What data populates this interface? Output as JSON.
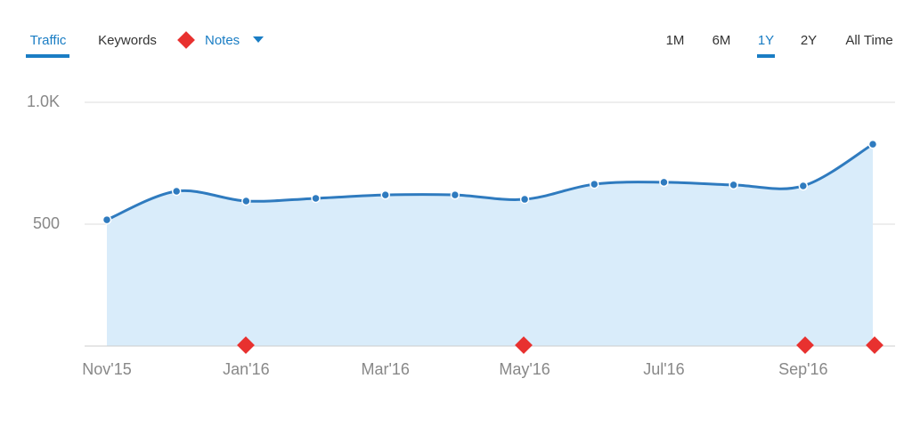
{
  "tabs": {
    "left": [
      "Traffic",
      "Keywords",
      "Notes"
    ],
    "right": [
      "1M",
      "6M",
      "1Y",
      "2Y",
      "All Time"
    ]
  },
  "chart_data": {
    "type": "area",
    "categories": [
      "Nov'15",
      null,
      "Jan'16",
      null,
      "Mar'16",
      null,
      "May'16",
      null,
      "Jul'16",
      null,
      "Sep'16",
      null
    ],
    "series": [
      {
        "name": "Traffic",
        "color": "#2f7bbf",
        "values": [
          518,
          635,
          595,
          606,
          620,
          620,
          602,
          664,
          672,
          661,
          657,
          828
        ]
      }
    ],
    "ylim": [
      0,
      1000
    ],
    "yticks": [
      {
        "value": 1000,
        "label": "1.0K"
      },
      500
    ],
    "grid": true
  }
}
